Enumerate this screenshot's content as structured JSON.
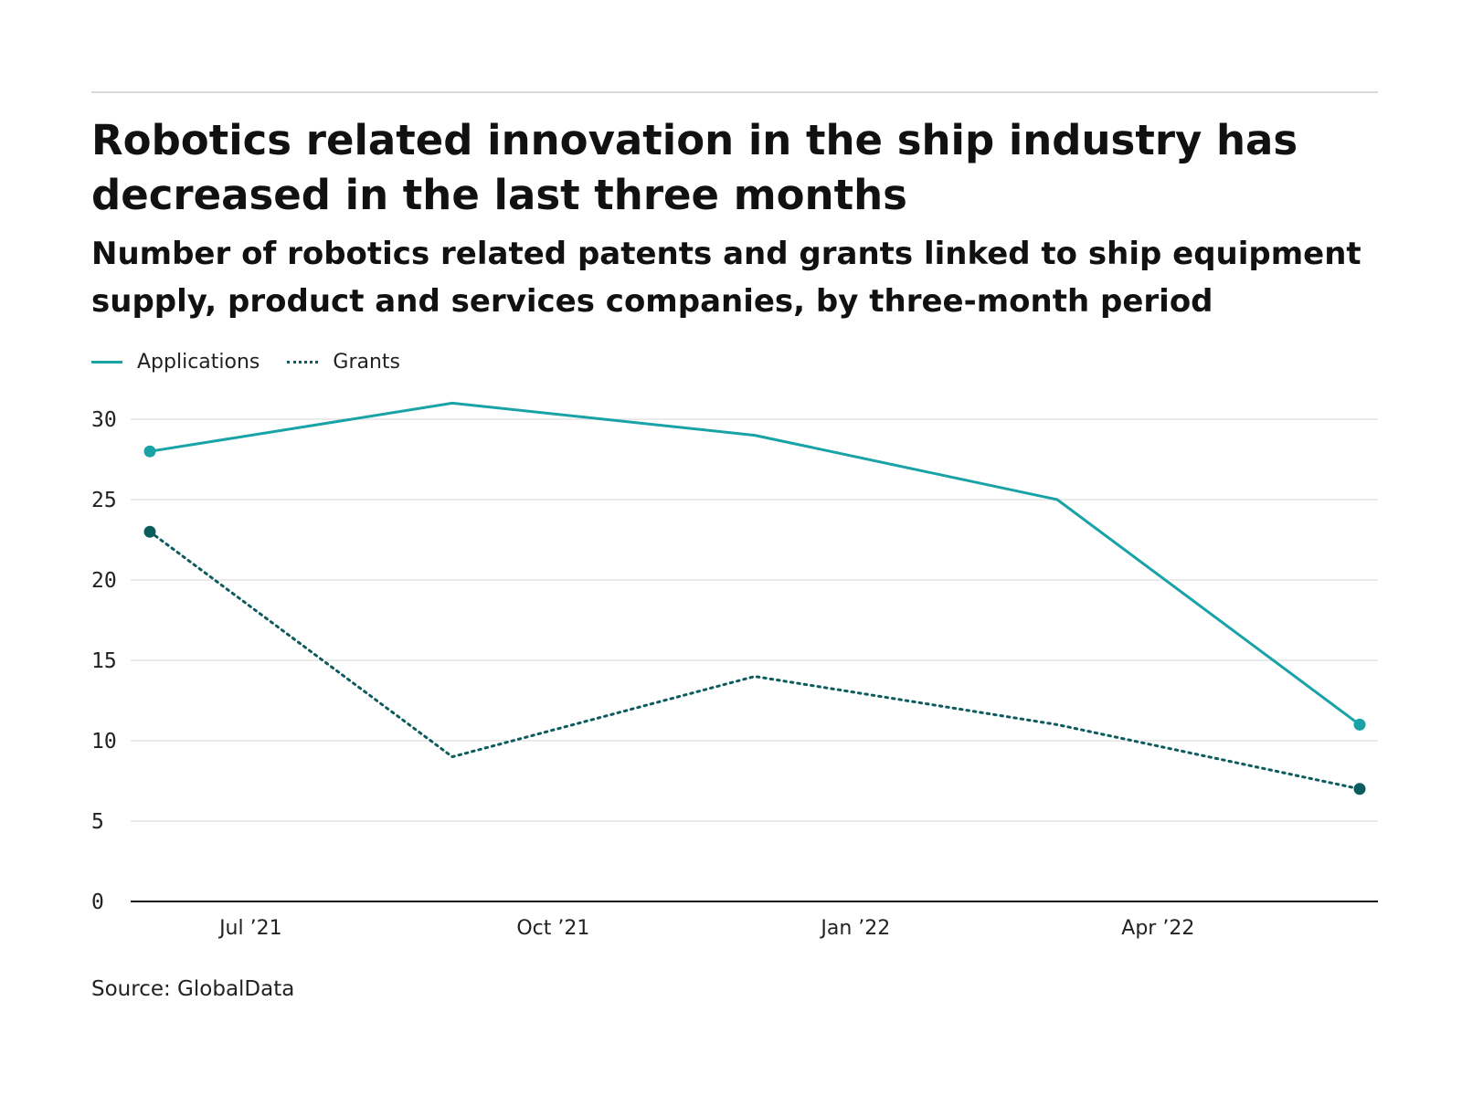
{
  "chart_data": {
    "type": "line",
    "title": "Robotics related innovation in the ship industry has decreased in the last three months",
    "subtitle": "Number of robotics related patents and grants linked to ship equipment supply, product and services companies, by three-month period",
    "x": [
      "2021-06",
      "2021-09",
      "2021-12",
      "2022-03",
      "2022-06"
    ],
    "x_tick_labels": [
      "Jul ’21",
      "Oct ’21",
      "Jan ’22",
      "Apr ’22"
    ],
    "x_tick_positions": [
      "2021-07",
      "2021-10",
      "2022-01",
      "2022-04"
    ],
    "series": [
      {
        "name": "Applications",
        "values": [
          28,
          31,
          29,
          25,
          11
        ],
        "color": "#1aa3a6",
        "style": "solid"
      },
      {
        "name": "Grants",
        "values": [
          23,
          9,
          14,
          11,
          7
        ],
        "color": "#0c5c5e",
        "style": "dotted"
      }
    ],
    "y_ticks": [
      0,
      5,
      10,
      15,
      20,
      25,
      30
    ],
    "ylim": [
      0,
      30
    ],
    "xlabel": "",
    "ylabel": "",
    "grid": true,
    "legend": "top-left",
    "source": "Source: GlobalData"
  }
}
